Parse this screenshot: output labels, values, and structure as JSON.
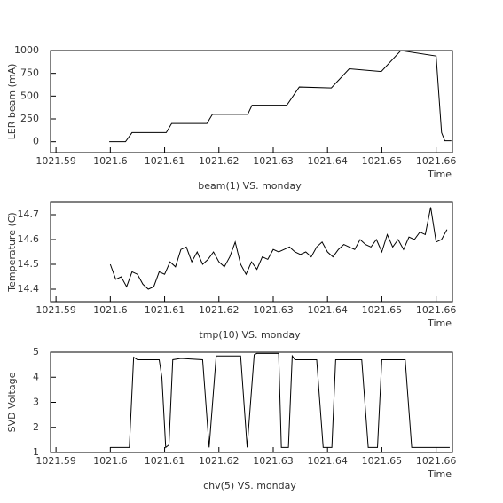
{
  "chart_data": [
    {
      "type": "line",
      "title": "beam(1) VS. monday",
      "xlabel": "Time",
      "ylabel": "LER beam (mA)",
      "color": "#000000",
      "x": [
        1021.5998,
        1021.6028,
        1021.604,
        1021.6103,
        1021.6113,
        1021.6178,
        1021.6188,
        1021.6253,
        1021.6261,
        1021.6325,
        1021.6348,
        1021.6407,
        1021.644,
        1021.6499,
        1021.6535,
        1021.66,
        1021.661,
        1021.6616,
        1021.6628
      ],
      "values": [
        0,
        0,
        100,
        100,
        200,
        200,
        300,
        300,
        400,
        400,
        600,
        590,
        800,
        770,
        1000,
        940,
        100,
        10,
        10
      ],
      "xlim": [
        1021.589,
        1021.663
      ],
      "ylim": [
        -120,
        1000
      ],
      "xticks": [
        1021.59,
        1021.6,
        1021.61,
        1021.62,
        1021.63,
        1021.64,
        1021.65,
        1021.66
      ],
      "yticks": [
        0,
        250,
        500,
        750,
        1000
      ]
    },
    {
      "type": "line",
      "title": "tmp(10) VS. monday",
      "xlabel": "Time",
      "ylabel": "Temperature (C)",
      "color": "#000000",
      "x": [
        1021.6,
        1021.601,
        1021.602,
        1021.603,
        1021.604,
        1021.605,
        1021.606,
        1021.607,
        1021.608,
        1021.609,
        1021.61,
        1021.611,
        1021.612,
        1021.613,
        1021.614,
        1021.615,
        1021.616,
        1021.617,
        1021.618,
        1021.619,
        1021.62,
        1021.621,
        1021.622,
        1021.623,
        1021.624,
        1021.625,
        1021.626,
        1021.627,
        1021.628,
        1021.629,
        1021.63,
        1021.631,
        1021.632,
        1021.633,
        1021.634,
        1021.635,
        1021.636,
        1021.637,
        1021.638,
        1021.639,
        1021.64,
        1021.641,
        1021.642,
        1021.643,
        1021.644,
        1021.645,
        1021.646,
        1021.647,
        1021.648,
        1021.649,
        1021.65,
        1021.651,
        1021.652,
        1021.653,
        1021.654,
        1021.655,
        1021.656,
        1021.657,
        1021.658,
        1021.659,
        1021.66,
        1021.661,
        1021.662
      ],
      "values": [
        14.5,
        14.44,
        14.45,
        14.41,
        14.47,
        14.46,
        14.42,
        14.4,
        14.41,
        14.47,
        14.46,
        14.51,
        14.49,
        14.56,
        14.57,
        14.51,
        14.55,
        14.5,
        14.52,
        14.55,
        14.51,
        14.49,
        14.53,
        14.59,
        14.5,
        14.46,
        14.51,
        14.48,
        14.53,
        14.52,
        14.56,
        14.55,
        14.56,
        14.57,
        14.55,
        14.54,
        14.55,
        14.53,
        14.57,
        14.59,
        14.55,
        14.53,
        14.56,
        14.58,
        14.57,
        14.56,
        14.6,
        14.58,
        14.57,
        14.6,
        14.55,
        14.62,
        14.57,
        14.6,
        14.56,
        14.61,
        14.6,
        14.63,
        14.62,
        14.73,
        14.59,
        14.6,
        14.64
      ],
      "xlim": [
        1021.589,
        1021.663
      ],
      "ylim": [
        14.35,
        14.75
      ],
      "xticks": [
        1021.59,
        1021.6,
        1021.61,
        1021.62,
        1021.63,
        1021.64,
        1021.65,
        1021.66
      ],
      "yticks": [
        14.4,
        14.5,
        14.6,
        14.7
      ]
    },
    {
      "type": "line",
      "title": "chv(5) VS. monday",
      "xlabel": "Time",
      "ylabel": "SVD Voltage",
      "color": "#000000",
      "x": [
        1021.6,
        1021.6035,
        1021.6043,
        1021.605,
        1021.609,
        1021.6095,
        1021.6102,
        1021.6108,
        1021.6115,
        1021.613,
        1021.617,
        1021.6182,
        1021.6195,
        1021.624,
        1021.6252,
        1021.6265,
        1021.627,
        1021.631,
        1021.6315,
        1021.6328,
        1021.6335,
        1021.634,
        1021.638,
        1021.6392,
        1021.6408,
        1021.6415,
        1021.6463,
        1021.6475,
        1021.6492,
        1021.65,
        1021.6543,
        1021.6555,
        1021.6625
      ],
      "values": [
        1.2,
        1.2,
        4.8,
        4.7,
        4.7,
        4.0,
        1.2,
        1.3,
        4.7,
        4.75,
        4.7,
        1.2,
        4.85,
        4.85,
        1.2,
        4.9,
        4.95,
        4.95,
        1.2,
        1.2,
        4.85,
        4.7,
        4.7,
        1.2,
        1.2,
        4.7,
        4.7,
        1.2,
        1.2,
        4.7,
        4.7,
        1.2,
        1.2
      ],
      "xlim": [
        1021.589,
        1021.663
      ],
      "ylim": [
        1,
        5
      ],
      "xticks": [
        1021.59,
        1021.6,
        1021.61,
        1021.62,
        1021.63,
        1021.64,
        1021.65,
        1021.66
      ],
      "yticks": [
        1,
        2,
        3,
        4,
        5
      ]
    }
  ]
}
